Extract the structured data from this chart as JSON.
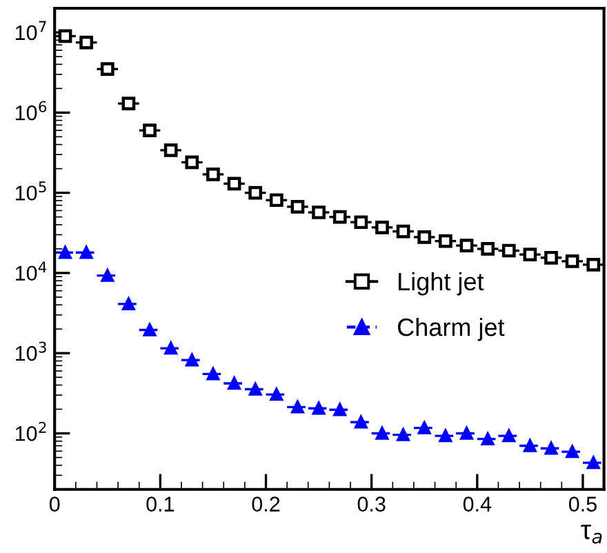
{
  "chart_data": {
    "type": "scatter",
    "xlabel": "τ$_{a}$",
    "log": "y",
    "xlim": [
      0,
      0.52
    ],
    "xticks": [
      0,
      0.1,
      0.2,
      0.3,
      0.4,
      0.5
    ],
    "ylim": [
      20,
      20000000
    ],
    "yticks": [
      {
        "value": 100,
        "label": "10$^{2}$"
      },
      {
        "value": 1000,
        "label": "10$^{3}$"
      },
      {
        "value": 10000,
        "label": "10$^{4}$"
      },
      {
        "value": 100000,
        "label": "10$^{5}$"
      },
      {
        "value": 1000000,
        "label": "10$^{6}$"
      },
      {
        "value": 10000000,
        "label": "10$^{7}$"
      }
    ],
    "grid": false,
    "legend": "right",
    "x": [
      0.01,
      0.03,
      0.05,
      0.07,
      0.09,
      0.11,
      0.13,
      0.15,
      0.17,
      0.19,
      0.21,
      0.23,
      0.25,
      0.27,
      0.29,
      0.31,
      0.33,
      0.35,
      0.37,
      0.39,
      0.41,
      0.43,
      0.45,
      0.47,
      0.49,
      0.51
    ],
    "series": [
      {
        "name": "Light jet",
        "color": "#000000",
        "marker": "square",
        "line_style": "solid",
        "values": [
          9000000,
          7500000,
          3500000,
          1300000,
          600000,
          340000,
          240000,
          170000,
          130000,
          100000,
          81000,
          67000,
          57000,
          50000,
          43000,
          37000,
          33000,
          28000,
          25000,
          22000,
          20000,
          19000,
          17000,
          15500,
          14000,
          12700
        ],
        "xerrors": [
          0.01,
          0.01,
          0.01,
          0.01,
          0.01,
          0.01,
          0.01,
          0.01,
          0.01,
          0.01,
          0.01,
          0.01,
          0.01,
          0.01,
          0.01,
          0.01,
          0.01,
          0.01,
          0.01,
          0.01,
          0.01,
          0.01,
          0.01,
          0.01,
          0.01,
          0.01
        ]
      },
      {
        "name": "Charm jet",
        "color": "#0000ff",
        "marker": "triangle",
        "line_style": "dashed",
        "values": [
          18000,
          18000,
          9300,
          4100,
          1950,
          1150,
          820,
          550,
          420,
          355,
          305,
          213,
          205,
          197,
          138,
          100,
          96,
          117,
          93,
          100,
          85,
          93,
          70,
          65,
          59,
          43
        ],
        "xerrors": [
          0.01,
          0.01,
          0.01,
          0.01,
          0.01,
          0.01,
          0.01,
          0.01,
          0.01,
          0.01,
          0.01,
          0.01,
          0.01,
          0.01,
          0.01,
          0.01,
          0.01,
          0.01,
          0.01,
          0.01,
          0.01,
          0.01,
          0.01,
          0.01,
          0.01,
          0.01
        ]
      }
    ]
  }
}
